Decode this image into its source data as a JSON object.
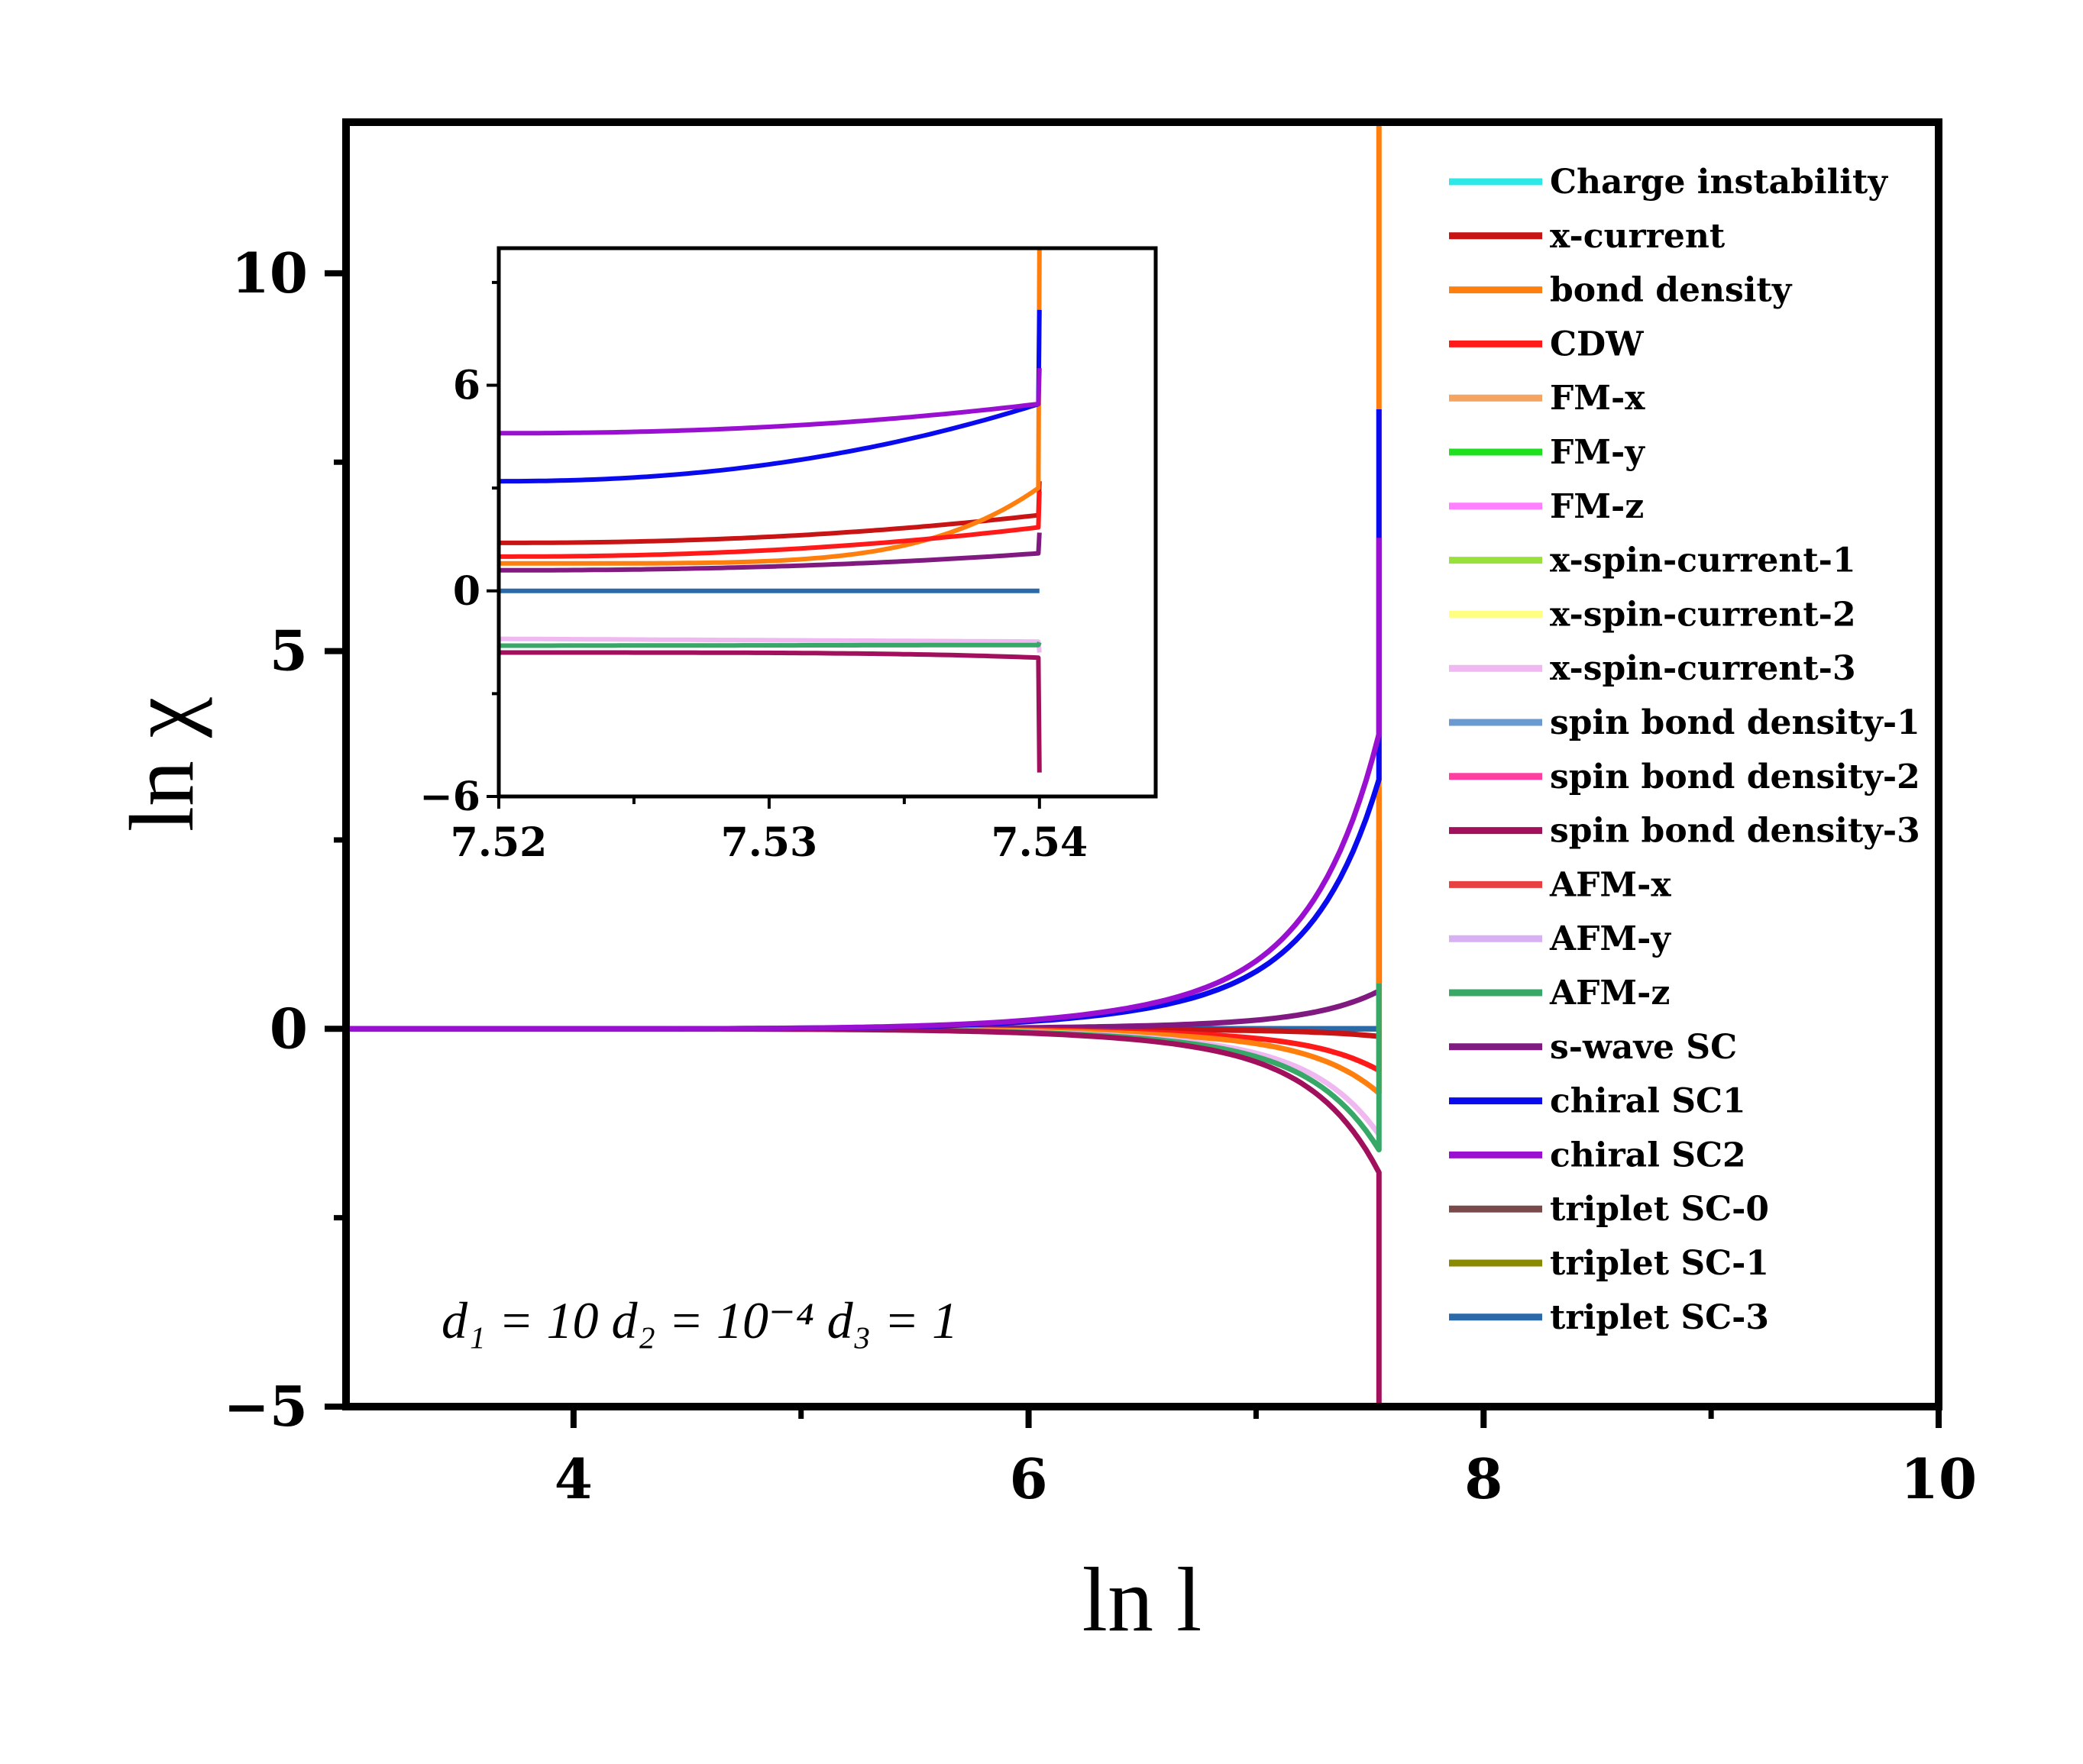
{
  "chart_data": {
    "type": "line",
    "main": {
      "xlabel": "ln l",
      "ylabel": "ln χ",
      "xlim": [
        3,
        10
      ],
      "ylim": [
        -5,
        12
      ],
      "xticks": [
        "4",
        "6",
        "8",
        "10"
      ],
      "yticks": [
        "−5",
        "0",
        "5",
        "10"
      ],
      "annotation": "d₁ = 10  d₂ = 10⁻⁴  d₃ = 1",
      "singularity_x": 7.54
    },
    "inset": {
      "xlim": [
        7.52,
        7.5443
      ],
      "ylim": [
        -6,
        10
      ],
      "xticks": [
        "7.52",
        "7.53",
        "7.54"
      ],
      "yticks": [
        "−6",
        "0",
        "6"
      ]
    },
    "series": [
      {
        "name": "Charge instability",
        "color": "#2ee8e8",
        "end": 0.0,
        "tail": null
      },
      {
        "name": "x-current",
        "color": "#c81414",
        "end": -0.1,
        "tail": 2.5,
        "inset_start": 1.4,
        "inset_end": 3.2
      },
      {
        "name": "bond density",
        "color": "#ff7f0e",
        "end": -0.85,
        "tail": 12.0,
        "inset_start": 0.8,
        "inset_end": 10.0
      },
      {
        "name": "CDW",
        "color": "#ff1a1a",
        "end": -0.55,
        "tail": 3.2,
        "inset_start": 1.0,
        "inset_end": 2.9
      },
      {
        "name": "FM-x",
        "color": "#f4a460",
        "end": 0.0,
        "tail": null
      },
      {
        "name": "FM-y",
        "color": "#1ee01e",
        "end": 0.0,
        "tail": null
      },
      {
        "name": "FM-z",
        "color": "#ff80ff",
        "end": 0.0,
        "tail": null
      },
      {
        "name": "x-spin-current-1",
        "color": "#9ae03c",
        "end": 0.0,
        "tail": null
      },
      {
        "name": "x-spin-current-2",
        "color": "#ffff80",
        "end": 0.0,
        "tail": null
      },
      {
        "name": "x-spin-current-3",
        "color": "#f0b8f0",
        "end": -1.4,
        "tail": null,
        "inset_start": -1.4,
        "inset_end": -1.8
      },
      {
        "name": "spin bond density-1",
        "color": "#6a9ad0",
        "end": 0.0,
        "tail": null
      },
      {
        "name": "spin bond density-2",
        "color": "#ff3fa0",
        "end": 0.0,
        "tail": null
      },
      {
        "name": "spin bond density-3",
        "color": "#a0105c",
        "end": -1.9,
        "tail": -5.0,
        "inset_start": -1.8,
        "inset_end": -5.3
      },
      {
        "name": "AFM-x",
        "color": "#e84040",
        "end": 0.0,
        "tail": null
      },
      {
        "name": "AFM-y",
        "color": "#d8b0f4",
        "end": 0.0,
        "tail": null
      },
      {
        "name": "AFM-z",
        "color": "#38a868",
        "end": -1.6,
        "tail": 0.6,
        "inset_start": -1.6,
        "inset_end": -1.5
      },
      {
        "name": "s-wave SC",
        "color": "#801a80",
        "end": 0.5,
        "tail": 1.7,
        "inset_start": 0.6,
        "inset_end": 1.7
      },
      {
        "name": "chiral SC1",
        "color": "#0a0aee",
        "end": 3.3,
        "tail": 8.2,
        "inset_start": 3.2,
        "inset_end": 8.2
      },
      {
        "name": "chiral SC2",
        "color": "#9a10d0",
        "end": 3.9,
        "tail": 6.5,
        "inset_start": 4.6,
        "inset_end": 6.5
      },
      {
        "name": "triplet SC-0",
        "color": "#7a4a4a",
        "end": 0.0,
        "tail": null
      },
      {
        "name": "triplet SC-1",
        "color": "#8a8a00",
        "end": 0.0,
        "tail": null
      },
      {
        "name": "triplet SC-3",
        "color": "#2a6aa8",
        "end": 0.0,
        "tail": null,
        "inset_start": 0.0,
        "inset_end": 0.0
      }
    ]
  }
}
